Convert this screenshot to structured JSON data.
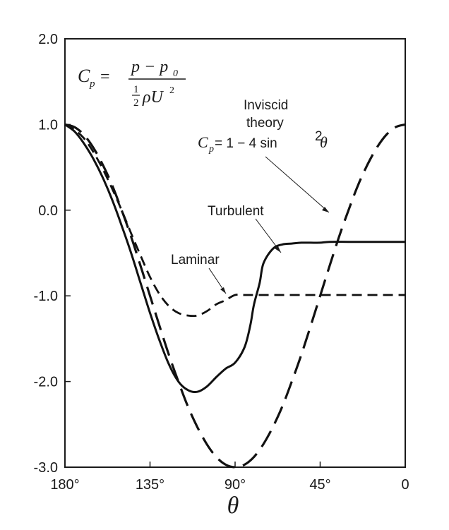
{
  "chart_data": {
    "type": "line",
    "xlabel": "θ",
    "ylabel": "",
    "x_ticks": [
      "180°",
      "135°",
      "90°",
      "45°",
      "0"
    ],
    "y_ticks": [
      "2.0",
      "1.0",
      "0.0",
      "-1.0",
      "-2.0",
      "-3.0"
    ],
    "xlim": [
      180,
      0
    ],
    "ylim": [
      -3.0,
      2.0
    ],
    "grid": false,
    "series": [
      {
        "name": "Inviscid theory",
        "style": "long-dash",
        "x": [
          180,
          175,
          170,
          165,
          160,
          155,
          150,
          145,
          140,
          135,
          130,
          125,
          120,
          115,
          110,
          105,
          100,
          95,
          90,
          85,
          80,
          75,
          70,
          65,
          60,
          55,
          50,
          45,
          40,
          35,
          30,
          25,
          20,
          15,
          10,
          5,
          0
        ],
        "y": [
          1.0,
          0.97,
          0.88,
          0.73,
          0.53,
          0.29,
          0.0,
          -0.31,
          -0.65,
          -1.0,
          -1.35,
          -1.69,
          -2.0,
          -2.29,
          -2.53,
          -2.73,
          -2.88,
          -2.97,
          -3.0,
          -2.97,
          -2.88,
          -2.73,
          -2.53,
          -2.29,
          -2.0,
          -1.69,
          -1.35,
          -1.0,
          -0.65,
          -0.31,
          0.0,
          0.29,
          0.53,
          0.73,
          0.88,
          0.97,
          1.0
        ]
      },
      {
        "name": "Turbulent",
        "style": "solid",
        "x": [
          180,
          175,
          170,
          165,
          160,
          155,
          150,
          145,
          140,
          135,
          130,
          125,
          120,
          115,
          110,
          105,
          100,
          95,
          90,
          85,
          82,
          80,
          77,
          75,
          70,
          65,
          60,
          55,
          50,
          45,
          40,
          30,
          20,
          10,
          0
        ],
        "y": [
          1.0,
          0.92,
          0.78,
          0.6,
          0.38,
          0.12,
          -0.18,
          -0.5,
          -0.85,
          -1.2,
          -1.52,
          -1.8,
          -2.0,
          -2.1,
          -2.12,
          -2.06,
          -1.95,
          -1.85,
          -1.78,
          -1.6,
          -1.35,
          -1.1,
          -0.85,
          -0.62,
          -0.45,
          -0.4,
          -0.39,
          -0.38,
          -0.38,
          -0.38,
          -0.37,
          -0.37,
          -0.37,
          -0.37,
          -0.37
        ]
      },
      {
        "name": "Laminar",
        "style": "short-dash",
        "x": [
          180,
          175,
          170,
          165,
          160,
          155,
          150,
          145,
          140,
          135,
          130,
          125,
          120,
          115,
          110,
          105,
          100,
          95,
          90,
          85,
          80,
          70,
          60,
          50,
          40,
          30,
          20,
          10,
          0
        ],
        "y": [
          1.0,
          0.94,
          0.84,
          0.68,
          0.48,
          0.25,
          0.0,
          -0.27,
          -0.53,
          -0.78,
          -0.98,
          -1.12,
          -1.2,
          -1.23,
          -1.23,
          -1.18,
          -1.1,
          -1.05,
          -0.99,
          -0.99,
          -0.99,
          -0.99,
          -0.99,
          -0.99,
          -0.99,
          -0.99,
          -0.99,
          -0.99,
          -0.99
        ]
      }
    ],
    "annotations": {
      "formula_lhs": "C",
      "formula_lhs_sub": "p",
      "formula_eq": "=",
      "formula_num": "p − p",
      "formula_num_sub": "0",
      "formula_den_frac_num": "1",
      "formula_den_frac_den": "2",
      "formula_den_rest": "ρU",
      "formula_den_sup": "2",
      "inviscid_line1": "Inviscid",
      "inviscid_line2": "theory",
      "inviscid_formula_lhs": "C",
      "inviscid_formula_sub": "p",
      "inviscid_formula_rest": " = 1 − 4 sin",
      "inviscid_formula_sup": "2",
      "inviscid_formula_theta": " θ",
      "turbulent_label": "Turbulent",
      "laminar_label": "Laminar"
    }
  }
}
